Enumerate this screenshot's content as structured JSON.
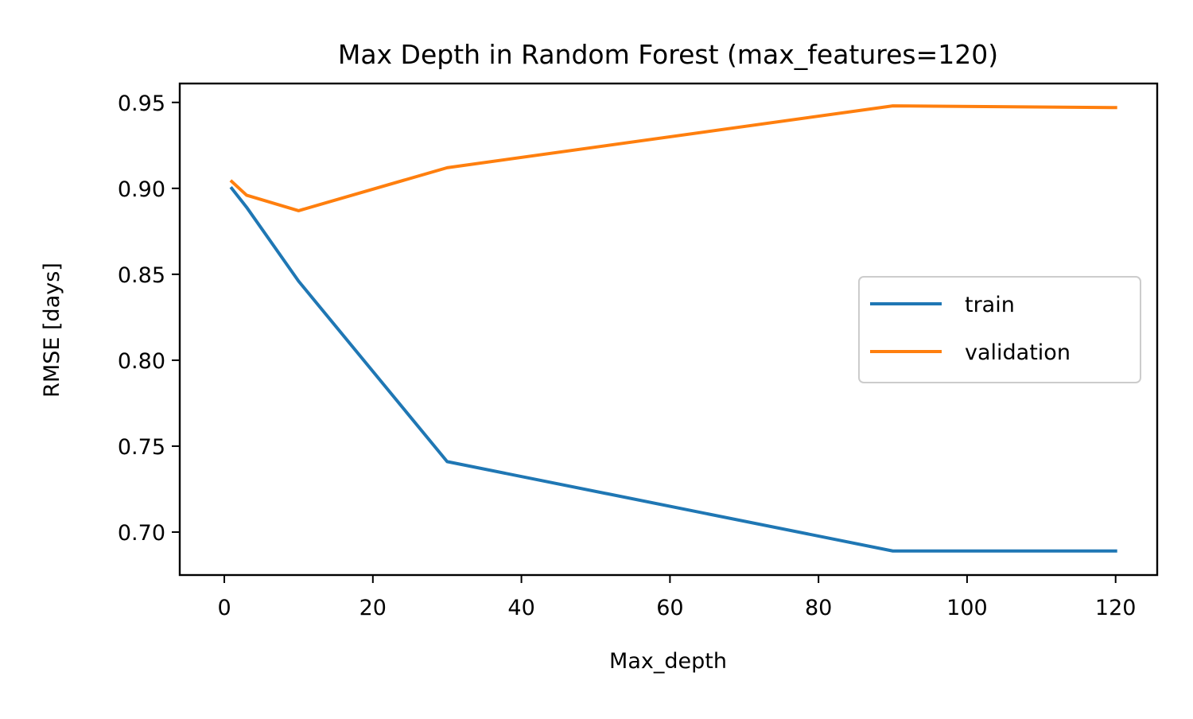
{
  "chart_data": {
    "type": "line",
    "title": "Max Depth in Random Forest (max_features=120)",
    "xlabel": "Max_depth",
    "ylabel": "RMSE [days]",
    "xlim": [
      -6,
      125.6
    ],
    "ylim": [
      0.675,
      0.961
    ],
    "xticks": [
      0,
      20,
      40,
      60,
      80,
      100,
      120
    ],
    "yticks": [
      0.7,
      0.75,
      0.8,
      0.85,
      0.9,
      0.95
    ],
    "ytick_labels": [
      "0.70",
      "0.75",
      "0.80",
      "0.85",
      "0.90",
      "0.95"
    ],
    "grid": false,
    "legend_position": "center-right",
    "series": [
      {
        "name": "train",
        "color": "#1f77b4",
        "x": [
          1,
          3,
          10,
          30,
          90,
          120
        ],
        "y": [
          0.9,
          0.889,
          0.846,
          0.741,
          0.689,
          0.689
        ]
      },
      {
        "name": "validation",
        "color": "#ff7f0e",
        "x": [
          1,
          3,
          10,
          30,
          90,
          120
        ],
        "y": [
          0.904,
          0.896,
          0.887,
          0.912,
          0.948,
          0.947
        ]
      }
    ]
  }
}
